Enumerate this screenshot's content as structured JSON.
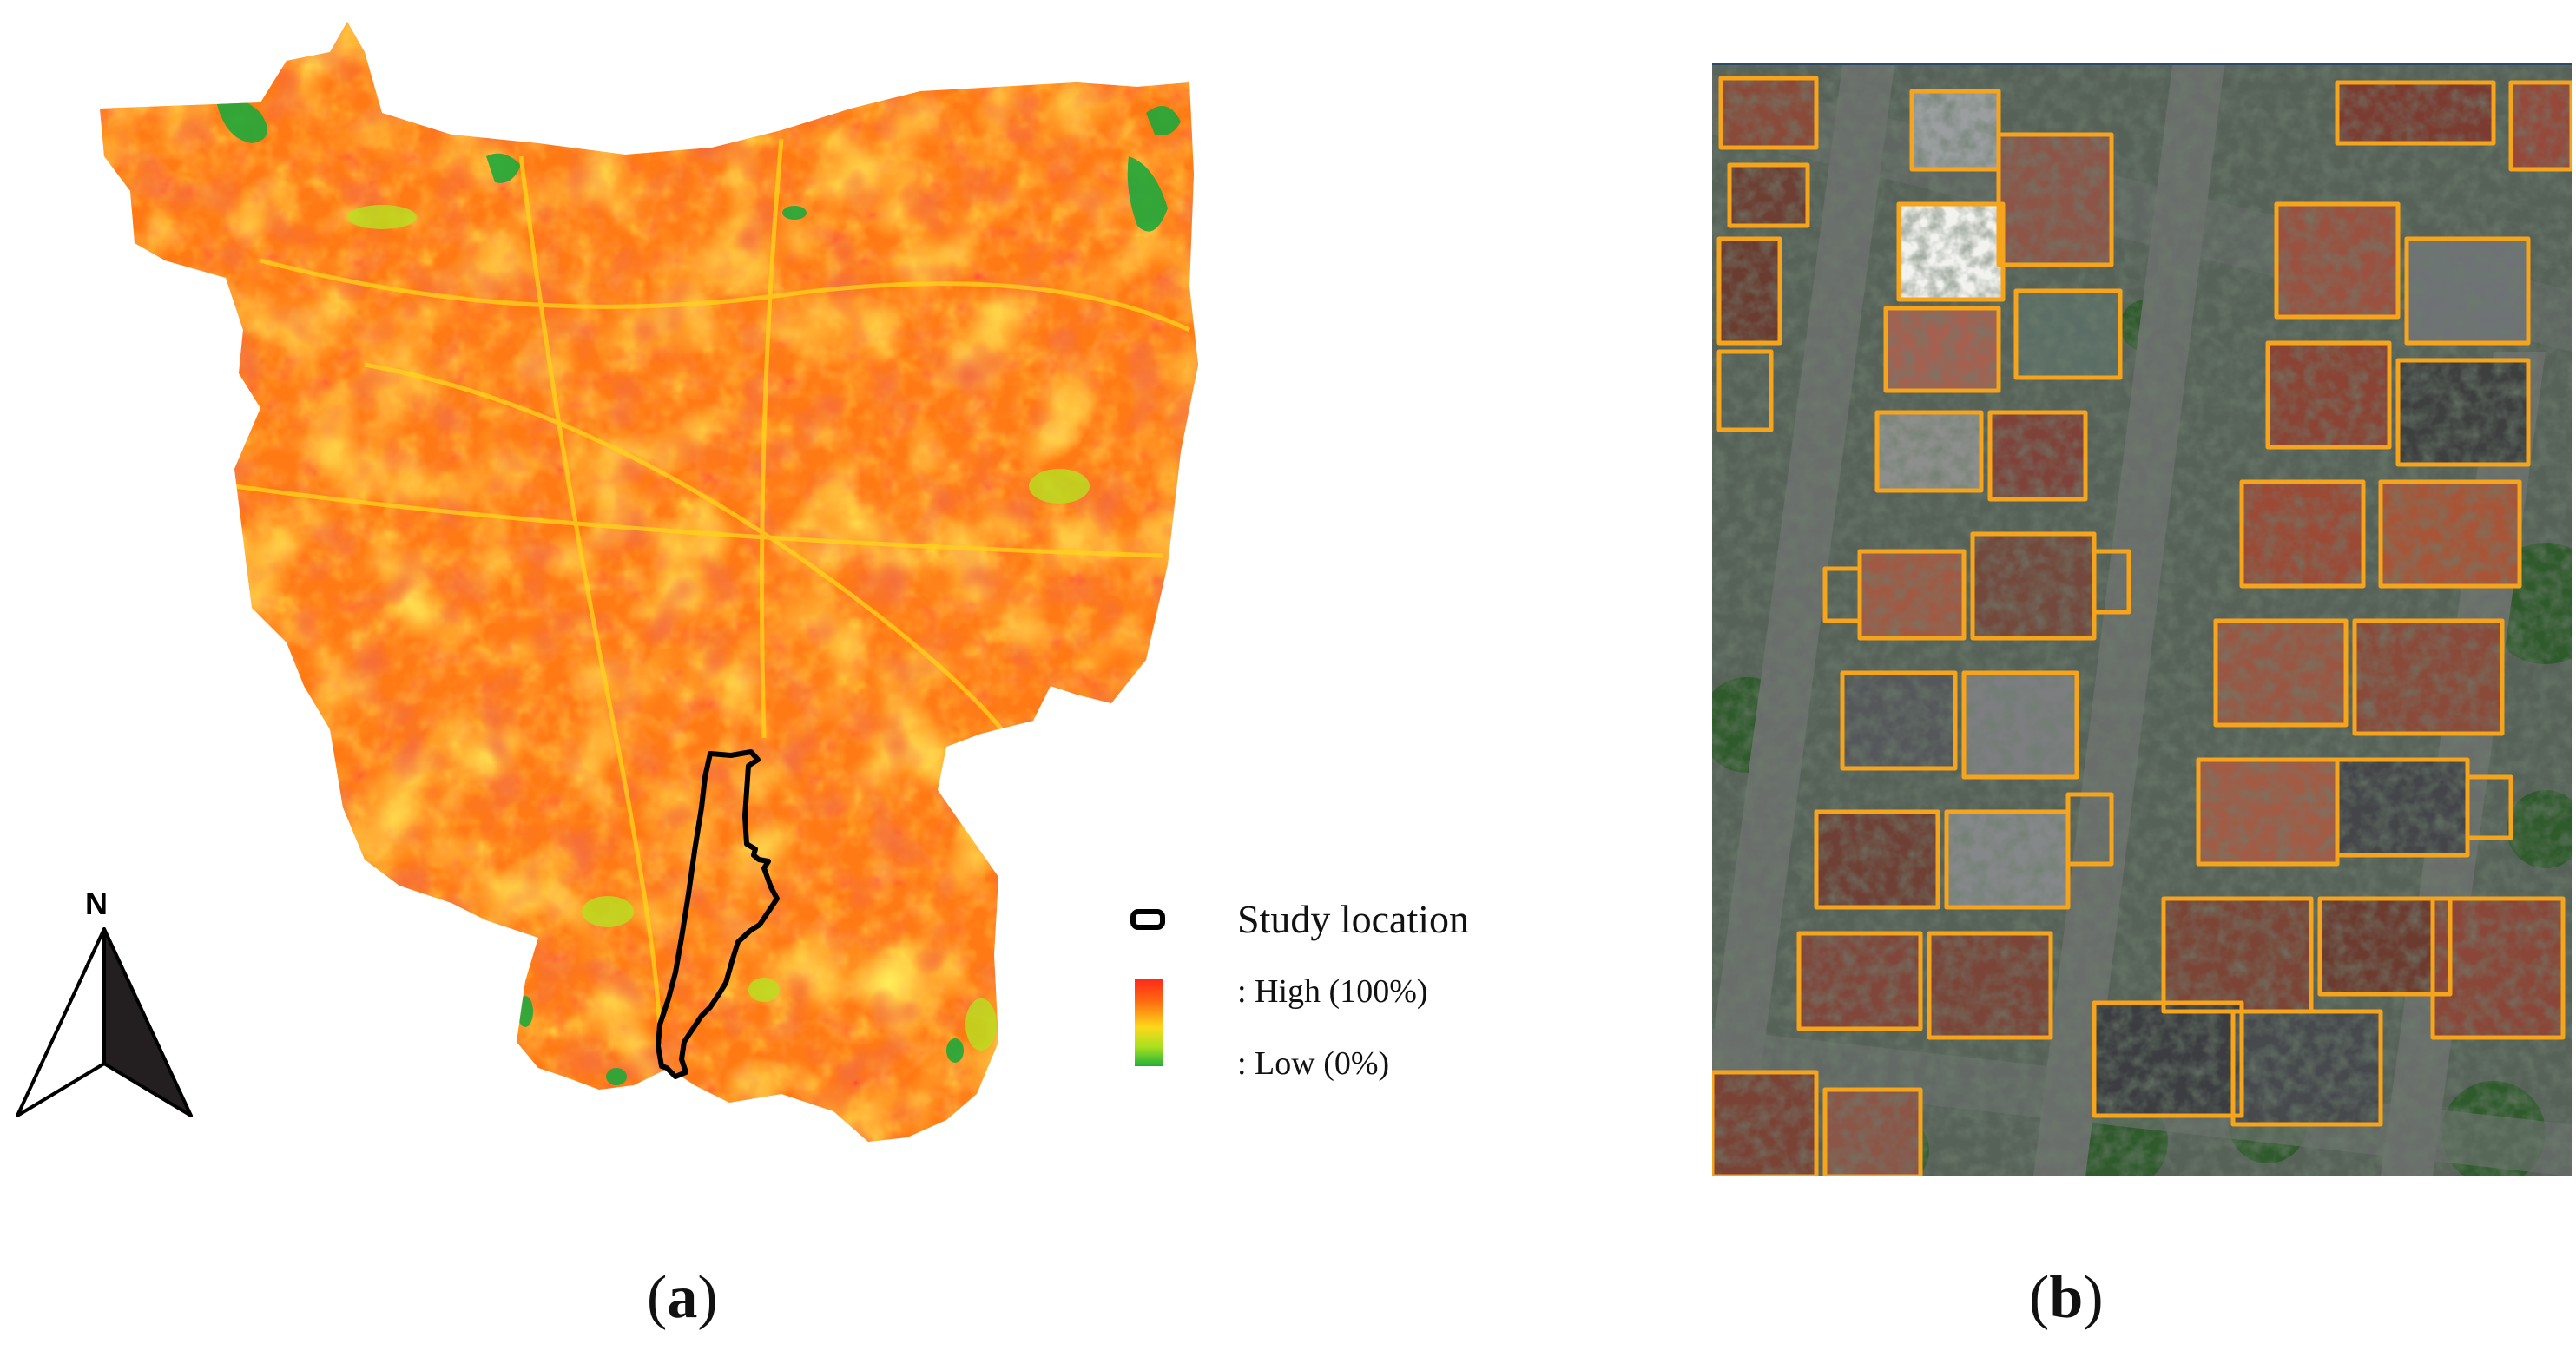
{
  "figure": {
    "panel_a": {
      "caption_open": "(",
      "caption_letter": "a",
      "caption_close": ")",
      "north_label": "N",
      "legend": {
        "study_location": "Study location",
        "high": ": High (100%)",
        "low": ": Low (0%)"
      },
      "colors": {
        "high": "#ff2a1a",
        "mid": "#ffd81a",
        "low": "#1eb03a",
        "study_outline": "#000000"
      }
    },
    "panel_b": {
      "caption_open": "(",
      "caption_letter": "b",
      "caption_close": ")",
      "colors": {
        "building_outline": "#f5a41c",
        "road": "#5b5f5c",
        "vegetation": "#2f5a2c"
      },
      "icons": [
        "north-arrow-icon"
      ]
    }
  }
}
